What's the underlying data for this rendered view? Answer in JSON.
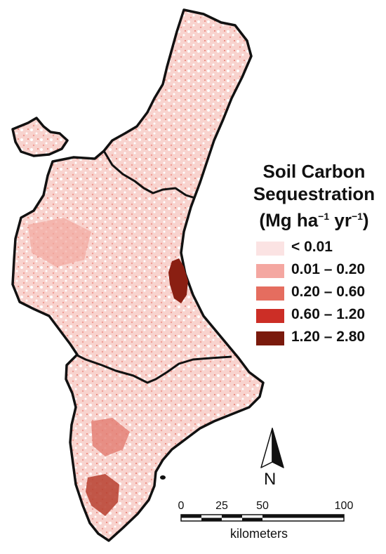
{
  "legend": {
    "title_line1": "Soil Carbon",
    "title_line2": "Sequestration",
    "title_line3_prefix": "(Mg ha",
    "title_line3_exp1": "−1",
    "title_line3_mid": " yr",
    "title_line3_exp2": "−1",
    "title_line3_suffix": ")",
    "classes": [
      {
        "label": "< 0.01",
        "color": "#fbe3e3"
      },
      {
        "label": "0.01 – 0.20",
        "color": "#f4a7a1"
      },
      {
        "label": "0.20 – 0.60",
        "color": "#e56d5f"
      },
      {
        "label": "0.60 – 1.20",
        "color": "#cc2e26"
      },
      {
        "label": "1.20 – 2.80",
        "color": "#7a1a0c"
      }
    ]
  },
  "north_arrow": {
    "letter": "N"
  },
  "scale_bar": {
    "labels": [
      "0",
      "25",
      "50",
      "100"
    ],
    "unit": "kilometers"
  },
  "colors": {
    "border": "#111111",
    "map_base": "#f8d6d2",
    "map_light": "#fdf0ef",
    "map_medium": "#ef9d95",
    "map_strong": "#c93a30",
    "map_dark": "#8a1f12"
  }
}
